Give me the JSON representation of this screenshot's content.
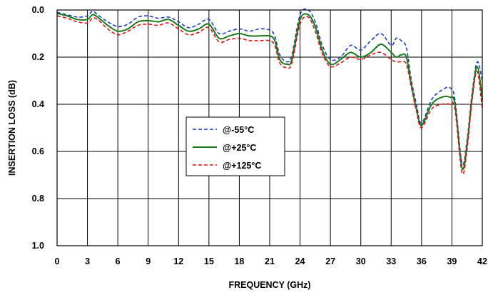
{
  "chart_data": {
    "type": "line",
    "xlabel": "FREQUENCY (GHz)",
    "ylabel": "INSERTION LOSS (dB)",
    "xlim": [
      0,
      42
    ],
    "ylim": [
      1.0,
      0.0
    ],
    "y_inverted": true,
    "grid": true,
    "legend_position": "center-left",
    "x_ticks": [
      "0",
      "3",
      "6",
      "9",
      "12",
      "15",
      "18",
      "21",
      "24",
      "27",
      "30",
      "33",
      "36",
      "39",
      "42"
    ],
    "y_ticks": [
      "0.0",
      "0.2",
      "0.4",
      "0.6",
      "0.8",
      "1.0"
    ],
    "x": [
      0,
      1,
      2,
      3,
      3.5,
      4,
      5,
      6,
      7,
      8,
      9,
      10,
      11,
      12,
      13,
      14,
      15,
      16,
      17,
      18,
      19,
      20,
      21,
      21.5,
      22,
      22.7,
      23.2,
      24,
      24.8,
      25.5,
      26.2,
      27,
      28,
      29,
      30,
      31,
      32,
      33,
      33.5,
      34,
      34.5,
      35,
      35.5,
      36,
      37,
      38,
      38.8,
      39.3,
      40,
      40.5,
      41,
      41.5,
      42
    ],
    "series": [
      {
        "name": "@-55°C",
        "color": "#1f3fbf",
        "dash": "dashed",
        "values": [
          0.01,
          0.02,
          0.03,
          0.025,
          0.005,
          0.02,
          0.05,
          0.07,
          0.06,
          0.03,
          0.025,
          0.035,
          0.03,
          0.05,
          0.075,
          0.06,
          0.04,
          0.1,
          0.09,
          0.08,
          0.09,
          0.08,
          0.085,
          0.11,
          0.19,
          0.22,
          0.19,
          0.02,
          0.0,
          0.05,
          0.15,
          0.21,
          0.2,
          0.15,
          0.17,
          0.13,
          0.1,
          0.15,
          0.12,
          0.13,
          0.16,
          0.3,
          0.4,
          0.48,
          0.38,
          0.34,
          0.33,
          0.38,
          0.65,
          0.55,
          0.35,
          0.22,
          0.3
        ]
      },
      {
        "name": "@+25°C",
        "color": "#1a7a1a",
        "dash": "solid",
        "values": [
          0.015,
          0.025,
          0.04,
          0.04,
          0.02,
          0.03,
          0.065,
          0.09,
          0.08,
          0.05,
          0.045,
          0.05,
          0.04,
          0.065,
          0.09,
          0.08,
          0.06,
          0.12,
          0.11,
          0.1,
          0.11,
          0.11,
          0.11,
          0.13,
          0.21,
          0.23,
          0.21,
          0.04,
          0.02,
          0.07,
          0.17,
          0.23,
          0.21,
          0.18,
          0.2,
          0.18,
          0.145,
          0.18,
          0.2,
          0.19,
          0.2,
          0.32,
          0.42,
          0.49,
          0.4,
          0.37,
          0.37,
          0.4,
          0.67,
          0.57,
          0.37,
          0.24,
          0.38
        ]
      },
      {
        "name": "@+125°C",
        "color": "#e01414",
        "dash": "dashed",
        "values": [
          0.025,
          0.035,
          0.05,
          0.055,
          0.035,
          0.04,
          0.08,
          0.105,
          0.09,
          0.065,
          0.06,
          0.065,
          0.055,
          0.08,
          0.105,
          0.095,
          0.075,
          0.135,
          0.125,
          0.12,
          0.13,
          0.13,
          0.13,
          0.15,
          0.225,
          0.245,
          0.225,
          0.06,
          0.03,
          0.09,
          0.185,
          0.24,
          0.225,
          0.2,
          0.21,
          0.19,
          0.18,
          0.21,
          0.22,
          0.22,
          0.23,
          0.33,
          0.43,
          0.5,
          0.42,
          0.4,
          0.4,
          0.42,
          0.69,
          0.59,
          0.38,
          0.26,
          0.42
        ]
      }
    ]
  }
}
